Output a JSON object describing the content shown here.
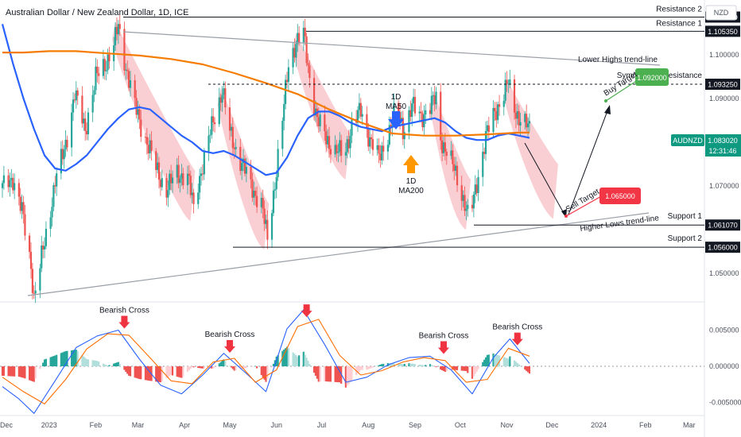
{
  "title": "Australian Dollar / New Zealand Dollar, 1D, ICE",
  "currency": "NZD",
  "symbol_tag": "AUDNZD",
  "last_price": "1.083020",
  "countdown": "12:31:46",
  "levels": [
    {
      "name": "Resistance 2",
      "price": 1.1086,
      "label": "1.108600"
    },
    {
      "name": "Resistance 1",
      "price": 1.10535,
      "label": "1.105350"
    },
    {
      "name": "Symmetrical Resistance",
      "price": 1.09325,
      "label": "1.093250"
    },
    {
      "name": "Support 1",
      "price": 1.06107,
      "label": "1.061070"
    },
    {
      "name": "Support 2",
      "price": 1.056,
      "label": "1.056000"
    }
  ],
  "annotations": {
    "lower_highs": "Lower Highs trend-line",
    "higher_lows": "Higher Lows trend-line",
    "ma50_a": "1D",
    "ma50_b": "MA50",
    "ma200_a": "1D",
    "ma200_b": "MA200",
    "buy_target": "Buy Target",
    "sell_target": "Sell Target",
    "buy_price": "1.092000",
    "sell_price": "1.065000",
    "bearish_cross": "Bearish Cross"
  },
  "chart_data": [
    {
      "type": "candlestick",
      "title": "Australian Dollar / New Zealand Dollar, 1D, ICE",
      "ylim": [
        1.0435,
        1.1125
      ],
      "y_ticks": [
        "1.100000",
        "1.090000",
        "1.070000",
        "1.050000"
      ],
      "y_tick_values": [
        1.1,
        1.09,
        1.07,
        1.05
      ],
      "x_ticks": [
        "Dec",
        "2023",
        "Feb",
        "Mar",
        "Apr",
        "May",
        "Jun",
        "Jul",
        "Aug",
        "Sep",
        "Oct",
        "Nov",
        "Dec",
        "2024",
        "Feb",
        "Mar"
      ],
      "path_points": [
        [
          "2022-12-01",
          1.0695
        ],
        [
          "2022-12-08",
          1.072
        ],
        [
          "2022-12-14",
          1.064
        ],
        [
          "2022-12-20",
          1.052
        ],
        [
          "2022-12-22",
          1.0445
        ],
        [
          "2022-12-29",
          1.057
        ],
        [
          "2023-01-05",
          1.071
        ],
        [
          "2023-01-11",
          1.078
        ],
        [
          "2023-01-18",
          1.091
        ],
        [
          "2023-01-25",
          1.083
        ],
        [
          "2023-02-01",
          1.0945
        ],
        [
          "2023-02-08",
          1.0985
        ],
        [
          "2023-02-13",
          1.102
        ],
        [
          "2023-02-16",
          1.1065
        ],
        [
          "2023-02-20",
          1.099
        ],
        [
          "2023-02-27",
          1.088
        ],
        [
          "2023-03-06",
          1.081
        ],
        [
          "2023-03-13",
          1.074
        ],
        [
          "2023-03-20",
          1.069
        ],
        [
          "2023-03-27",
          1.073
        ],
        [
          "2023-04-03",
          1.072
        ],
        [
          "2023-04-07",
          1.065
        ],
        [
          "2023-04-10",
          1.071
        ],
        [
          "2023-04-14",
          1.076
        ],
        [
          "2023-04-20",
          1.085
        ],
        [
          "2023-04-26",
          1.092
        ],
        [
          "2023-05-01",
          1.082
        ],
        [
          "2023-05-08",
          1.076
        ],
        [
          "2023-05-15",
          1.07
        ],
        [
          "2023-05-22",
          1.066
        ],
        [
          "2023-05-26",
          1.0575
        ],
        [
          "2023-05-31",
          1.071
        ],
        [
          "2023-06-05",
          1.085
        ],
        [
          "2023-06-09",
          1.098
        ],
        [
          "2023-06-14",
          1.103
        ],
        [
          "2023-06-19",
          1.1045
        ],
        [
          "2023-06-23",
          1.095
        ],
        [
          "2023-06-28",
          1.085
        ],
        [
          "2023-07-04",
          1.081
        ],
        [
          "2023-07-10",
          1.078
        ],
        [
          "2023-07-16",
          1.077
        ],
        [
          "2023-07-21",
          1.084
        ],
        [
          "2023-07-27",
          1.087
        ],
        [
          "2023-08-02",
          1.081
        ],
        [
          "2023-08-08",
          1.076
        ],
        [
          "2023-08-14",
          1.082
        ],
        [
          "2023-08-20",
          1.088
        ],
        [
          "2023-08-24",
          1.083
        ],
        [
          "2023-08-30",
          1.088
        ],
        [
          "2023-09-05",
          1.086
        ],
        [
          "2023-09-11",
          1.088
        ],
        [
          "2023-09-15",
          1.09
        ],
        [
          "2023-09-18",
          1.081
        ],
        [
          "2023-09-23",
          1.077
        ],
        [
          "2023-09-29",
          1.072
        ],
        [
          "2023-10-04",
          1.066
        ],
        [
          "2023-10-07",
          1.0615
        ],
        [
          "2023-10-12",
          1.071
        ],
        [
          "2023-10-18",
          1.081
        ],
        [
          "2023-10-24",
          1.087
        ],
        [
          "2023-10-30",
          1.091
        ],
        [
          "2023-11-02",
          1.0935
        ],
        [
          "2023-11-06",
          1.088
        ],
        [
          "2023-11-10",
          1.085
        ],
        [
          "2023-11-16",
          1.083
        ]
      ],
      "series": [
        {
          "name": "1D MA50",
          "color": "#2962ff",
          "points": [
            [
              "2022-12-01",
              1.107
            ],
            [
              "2022-12-08",
              1.098
            ],
            [
              "2022-12-15",
              1.09
            ],
            [
              "2022-12-22",
              1.083
            ],
            [
              "2022-12-29",
              1.077
            ],
            [
              "2023-01-05",
              1.074
            ],
            [
              "2023-01-12",
              1.0735
            ],
            [
              "2023-01-19",
              1.075
            ],
            [
              "2023-01-26",
              1.077
            ],
            [
              "2023-02-02",
              1.08
            ],
            [
              "2023-02-09",
              1.083
            ],
            [
              "2023-02-16",
              1.0855
            ],
            [
              "2023-02-23",
              1.0875
            ],
            [
              "2023-03-02",
              1.088
            ],
            [
              "2023-03-09",
              1.0875
            ],
            [
              "2023-03-16",
              1.0855
            ],
            [
              "2023-03-23",
              1.0835
            ],
            [
              "2023-03-30",
              1.0815
            ],
            [
              "2023-04-06",
              1.08
            ],
            [
              "2023-04-13",
              1.078
            ],
            [
              "2023-04-20",
              1.0775
            ],
            [
              "2023-04-27",
              1.078
            ],
            [
              "2023-05-04",
              1.077
            ],
            [
              "2023-05-11",
              1.0755
            ],
            [
              "2023-05-18",
              1.074
            ],
            [
              "2023-05-25",
              1.0725
            ],
            [
              "2023-06-01",
              1.073
            ],
            [
              "2023-06-08",
              1.0765
            ],
            [
              "2023-06-15",
              1.0815
            ],
            [
              "2023-06-22",
              1.0855
            ],
            [
              "2023-06-29",
              1.087
            ],
            [
              "2023-07-06",
              1.087
            ],
            [
              "2023-07-13",
              1.086
            ],
            [
              "2023-07-20",
              1.0845
            ],
            [
              "2023-07-27",
              1.0835
            ],
            [
              "2023-08-03",
              1.083
            ],
            [
              "2023-08-10",
              1.0825
            ],
            [
              "2023-08-17",
              1.0835
            ],
            [
              "2023-08-24",
              1.084
            ],
            [
              "2023-08-31",
              1.0845
            ],
            [
              "2023-09-07",
              1.085
            ],
            [
              "2023-09-14",
              1.0855
            ],
            [
              "2023-09-21",
              1.0845
            ],
            [
              "2023-09-28",
              1.0825
            ],
            [
              "2023-10-05",
              1.081
            ],
            [
              "2023-10-12",
              1.0805
            ],
            [
              "2023-10-19",
              1.0805
            ],
            [
              "2023-10-26",
              1.0815
            ],
            [
              "2023-11-02",
              1.082
            ],
            [
              "2023-11-09",
              1.0815
            ],
            [
              "2023-11-16",
              1.081
            ]
          ]
        },
        {
          "name": "1D MA200",
          "color": "#f57c00",
          "points": [
            [
              "2022-12-01",
              1.1005
            ],
            [
              "2022-12-15",
              1.1005
            ],
            [
              "2023-01-01",
              1.1008
            ],
            [
              "2023-01-19",
              1.1008
            ],
            [
              "2023-02-09",
              1.1003
            ],
            [
              "2023-03-02",
              1.0998
            ],
            [
              "2023-03-23",
              1.099
            ],
            [
              "2023-04-13",
              1.0978
            ],
            [
              "2023-05-04",
              1.0958
            ],
            [
              "2023-05-25",
              1.0935
            ],
            [
              "2023-06-15",
              1.091
            ],
            [
              "2023-07-06",
              1.0875
            ],
            [
              "2023-07-27",
              1.0845
            ],
            [
              "2023-08-17",
              1.082
            ],
            [
              "2023-09-07",
              1.0815
            ],
            [
              "2023-09-28",
              1.0815
            ],
            [
              "2023-10-19",
              1.0818
            ],
            [
              "2023-11-09",
              1.0822
            ],
            [
              "2023-11-16",
              1.0822
            ]
          ]
        }
      ],
      "x_range": [
        "2022-12-01",
        "2024-03-08"
      ]
    },
    {
      "type": "bar",
      "title": "",
      "ylim": [
        -0.0068,
        0.0089
      ],
      "y_ticks": [
        "0.005000",
        "0.000000",
        "-0.005000"
      ],
      "y_tick_values": [
        0.005,
        0,
        -0.005
      ],
      "series": [
        {
          "name": "MACD",
          "color": "#2962ff",
          "points": [
            [
              "2022-12-01",
              -0.0028
            ],
            [
              "2022-12-12",
              -0.0045
            ],
            [
              "2022-12-22",
              -0.0065
            ],
            [
              "2023-01-05",
              -0.002
            ],
            [
              "2023-01-19",
              0.0026
            ],
            [
              "2023-02-02",
              0.0042
            ],
            [
              "2023-02-16",
              0.005
            ],
            [
              "2023-03-02",
              0.001
            ],
            [
              "2023-03-16",
              -0.0026
            ],
            [
              "2023-03-30",
              -0.0038
            ],
            [
              "2023-04-13",
              -0.0012
            ],
            [
              "2023-04-27",
              0.0018
            ],
            [
              "2023-05-11",
              -0.0008
            ],
            [
              "2023-05-25",
              -0.0035
            ],
            [
              "2023-06-08",
              0.0052
            ],
            [
              "2023-06-19",
              0.0078
            ],
            [
              "2023-07-03",
              0.003
            ],
            [
              "2023-07-17",
              -0.0022
            ],
            [
              "2023-07-31",
              -0.0015
            ],
            [
              "2023-08-14",
              0.0002
            ],
            [
              "2023-08-28",
              0.0012
            ],
            [
              "2023-09-11",
              0.0014
            ],
            [
              "2023-09-25",
              -0.0005
            ],
            [
              "2023-10-09",
              -0.0038
            ],
            [
              "2023-10-23",
              0.0012
            ],
            [
              "2023-11-03",
              0.0038
            ],
            [
              "2023-11-16",
              0.0004
            ]
          ]
        },
        {
          "name": "Signal",
          "color": "#ff6d00",
          "points": [
            [
              "2022-12-01",
              -0.0015
            ],
            [
              "2022-12-15",
              -0.0035
            ],
            [
              "2022-12-29",
              -0.0052
            ],
            [
              "2023-01-12",
              -0.0018
            ],
            [
              "2023-01-26",
              0.0024
            ],
            [
              "2023-02-09",
              0.0045
            ],
            [
              "2023-02-23",
              0.0043
            ],
            [
              "2023-03-09",
              0.0012
            ],
            [
              "2023-03-23",
              -0.002
            ],
            [
              "2023-04-06",
              -0.0024
            ],
            [
              "2023-04-20",
              0.0006
            ],
            [
              "2023-05-04",
              0.0011
            ],
            [
              "2023-05-18",
              -0.0022
            ],
            [
              "2023-06-01",
              -0.0005
            ],
            [
              "2023-06-15",
              0.0055
            ],
            [
              "2023-06-29",
              0.0065
            ],
            [
              "2023-07-13",
              0.0015
            ],
            [
              "2023-07-27",
              -0.0012
            ],
            [
              "2023-08-10",
              -0.0006
            ],
            [
              "2023-08-24",
              0.0006
            ],
            [
              "2023-09-07",
              0.0012
            ],
            [
              "2023-09-21",
              0.0008
            ],
            [
              "2023-10-05",
              -0.0022
            ],
            [
              "2023-10-19",
              -0.0018
            ],
            [
              "2023-11-02",
              0.0025
            ],
            [
              "2023-11-16",
              0.0014
            ]
          ]
        }
      ],
      "cross_marks": [
        {
          "date": "2023-02-20",
          "label": "Bearish Cross"
        },
        {
          "date": "2023-05-01",
          "label": "Bearish Cross"
        },
        {
          "date": "2023-06-21",
          "label": ""
        },
        {
          "date": "2023-09-20",
          "label": "Bearish Cross"
        },
        {
          "date": "2023-11-08",
          "label": "Bearish Cross"
        }
      ],
      "x_range": [
        "2022-12-01",
        "2024-03-08"
      ]
    }
  ],
  "colors": {
    "bull": "#26a69a",
    "bear": "#ef5350",
    "ma50": "#2962ff",
    "ma200": "#f57c00",
    "channel": "#f7b6bd",
    "arrow": "#ef3340",
    "buy_box": "#4caf50",
    "sell_box": "#f23645",
    "tag": "#0e9981"
  }
}
